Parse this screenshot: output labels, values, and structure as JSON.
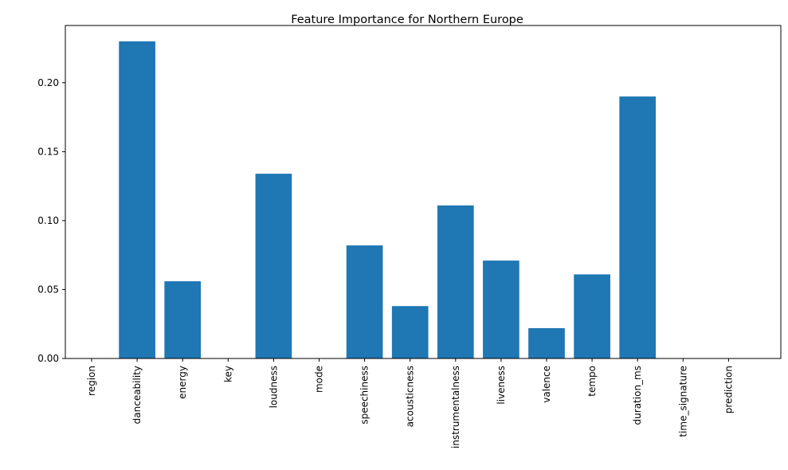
{
  "chart_data": {
    "type": "bar",
    "title": "Feature Importance for Northern Europe",
    "xlabel": "",
    "ylabel": "",
    "categories": [
      "region",
      "danceability",
      "energy",
      "key",
      "loudness",
      "mode",
      "speechiness",
      "acousticness",
      "instrumentalness",
      "liveness",
      "valence",
      "tempo",
      "duration_ms",
      "time_signature",
      "prediction"
    ],
    "values": [
      0.0,
      0.23,
      0.056,
      0.0,
      0.134,
      0.0,
      0.082,
      0.038,
      0.111,
      0.071,
      0.022,
      0.061,
      0.19,
      0.0,
      0.0
    ],
    "ylim": [
      0,
      0.2415
    ],
    "yticks": [
      0.0,
      0.05,
      0.1,
      0.15,
      0.2
    ],
    "ytick_labels": [
      "0.00",
      "0.05",
      "0.10",
      "0.15",
      "0.20"
    ],
    "bar_color": "#1f77b4",
    "grid": false,
    "legend": "none"
  }
}
